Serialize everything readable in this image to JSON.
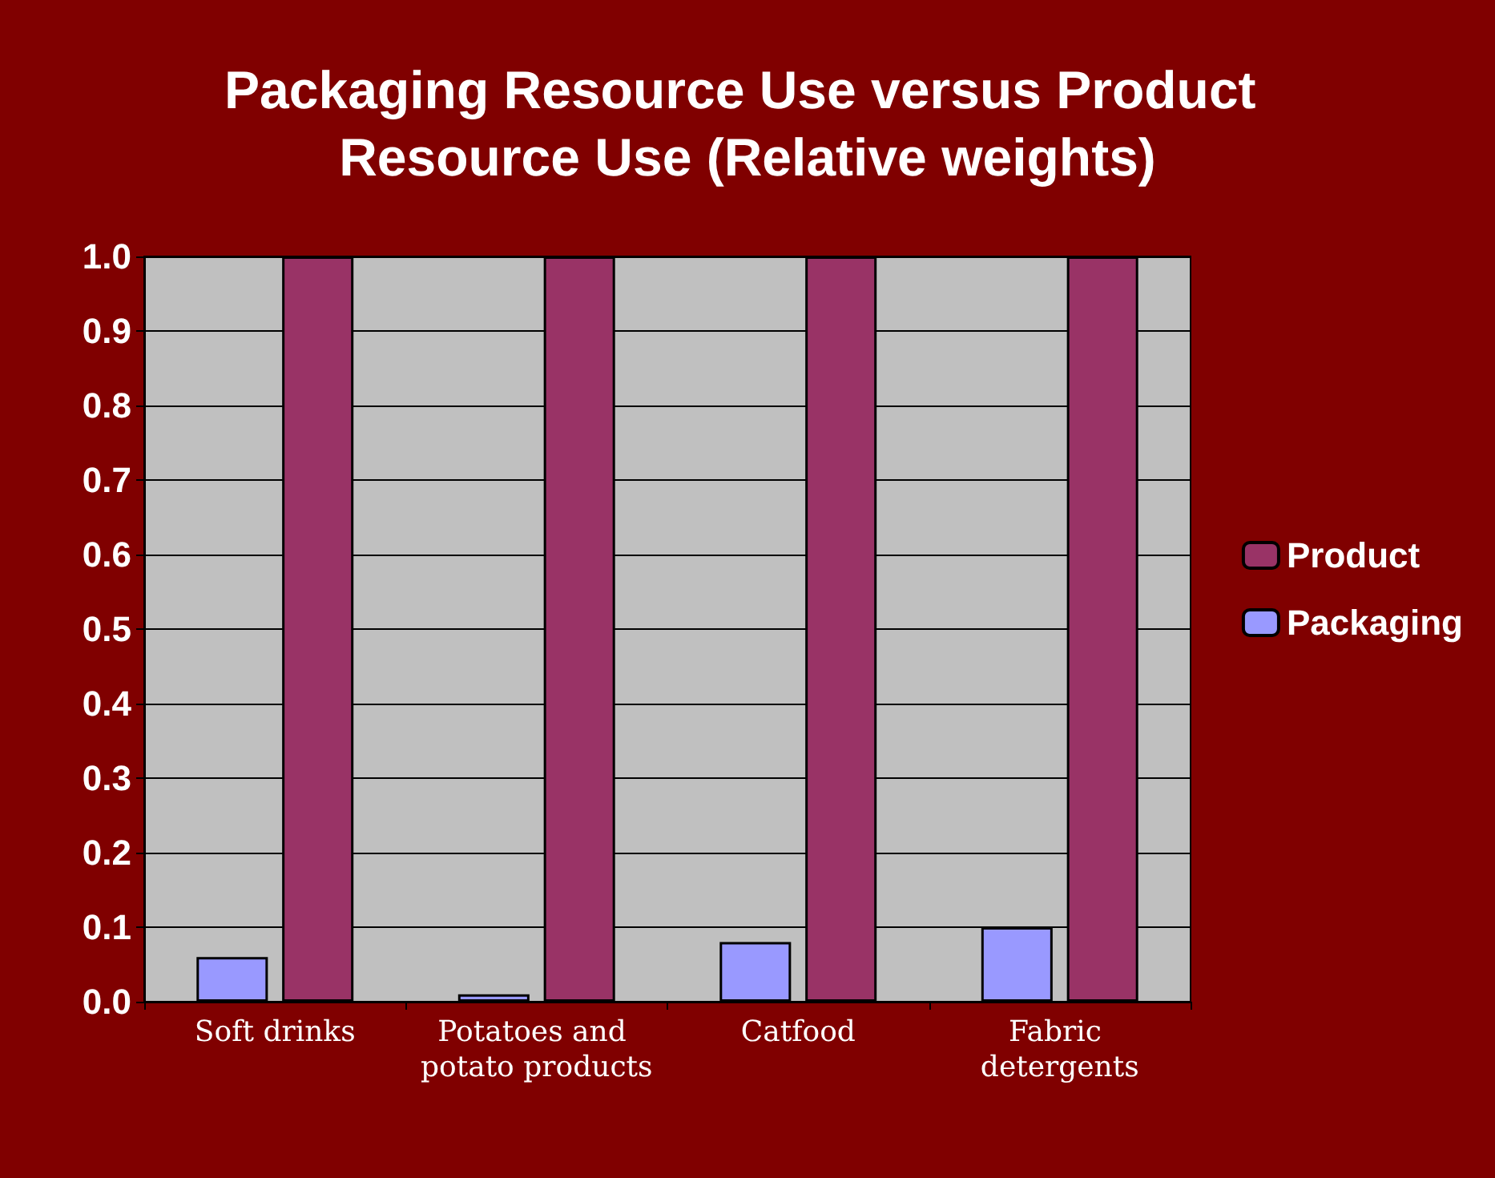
{
  "chart_data": {
    "type": "bar",
    "title": "Packaging Resource Use versus Product Resource Use (Relative weights)",
    "categories": [
      "Soft drinks",
      "Potatoes and potato products",
      "Catfood",
      "Fabric detergents"
    ],
    "series": [
      {
        "name": "Packaging",
        "color": "#9999ff",
        "values": [
          0.06,
          0.01,
          0.08,
          0.1
        ]
      },
      {
        "name": "Product",
        "color": "#993366",
        "values": [
          1.0,
          1.0,
          1.0,
          1.0
        ]
      }
    ],
    "ylim": [
      0,
      1
    ],
    "yticks": [
      {
        "value": 0,
        "label": "0.0"
      },
      {
        "value": 0.1,
        "label": "0.1"
      },
      {
        "value": 0.2,
        "label": "0.2"
      },
      {
        "value": 0.3,
        "label": "0.3"
      },
      {
        "value": 0.4,
        "label": "0.4"
      },
      {
        "value": 0.5,
        "label": "0.5"
      },
      {
        "value": 0.6,
        "label": "0.6"
      },
      {
        "value": 0.7,
        "label": "0.7"
      },
      {
        "value": 0.8,
        "label": "0.8"
      },
      {
        "value": 0.9,
        "label": "0.9"
      },
      {
        "value": 1,
        "label": "1.0"
      }
    ],
    "grid": "y",
    "legend": "right"
  }
}
